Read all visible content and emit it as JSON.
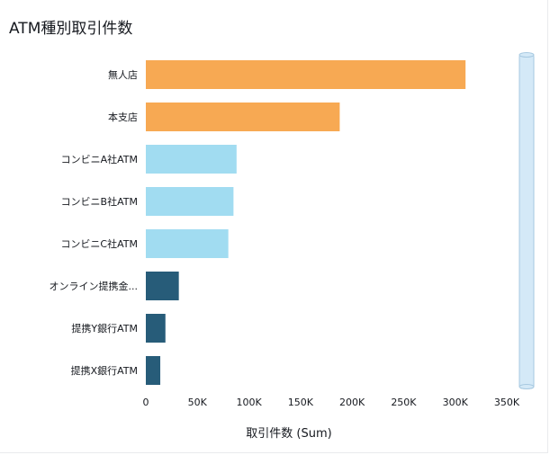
{
  "title": "ATM種別取引件数",
  "chart_data": {
    "type": "bar",
    "orientation": "horizontal",
    "title": "ATM種別取引件数",
    "xlabel": "取引件数 (Sum)",
    "ylabel": "",
    "xlim": [
      0,
      350000
    ],
    "x_ticks": [
      0,
      50000,
      100000,
      150000,
      200000,
      250000,
      300000,
      350000
    ],
    "x_tick_labels": [
      "0",
      "50K",
      "100K",
      "150K",
      "200K",
      "250K",
      "300K",
      "350K"
    ],
    "categories": [
      "無人店",
      "本支店",
      "コンビニA社ATM",
      "コンビニB社ATM",
      "コンビニC社ATM",
      "オンライン提携金...",
      "提携Y銀行ATM",
      "提携X銀行ATM"
    ],
    "values": [
      310000,
      188000,
      88000,
      85000,
      80000,
      32000,
      19000,
      14000
    ],
    "colors": [
      "#f7a953",
      "#f7a953",
      "#a1dcf1",
      "#a1dcf1",
      "#a1dcf1",
      "#275c79",
      "#275c79",
      "#275c79"
    ],
    "grid": false,
    "legend": "none"
  },
  "scrollbar": {
    "track_color": "#d4e9f7",
    "border_color": "#a6c8e0"
  }
}
